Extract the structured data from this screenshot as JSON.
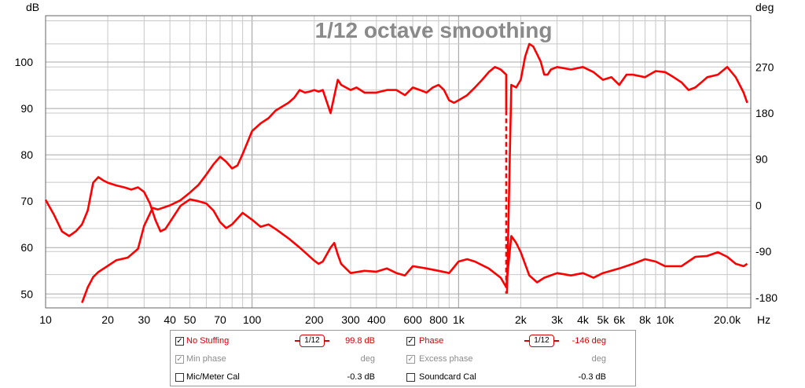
{
  "chart_data": {
    "type": "line",
    "title": "1/12 octave smoothing",
    "x_scale": "log",
    "xlim": [
      10,
      26000
    ],
    "y_left_label": "dB",
    "y_right_label": "deg",
    "x_unit_label": "Hz",
    "ylim_left": [
      47,
      110
    ],
    "ylim_right": [
      -200,
      370
    ],
    "grid": true,
    "x_ticks": [
      {
        "v": 10,
        "t": "10"
      },
      {
        "v": 20,
        "t": "20"
      },
      {
        "v": 30,
        "t": "30"
      },
      {
        "v": 40,
        "t": "40"
      },
      {
        "v": 50,
        "t": "50"
      },
      {
        "v": 70,
        "t": "70"
      },
      {
        "v": 100,
        "t": "100"
      },
      {
        "v": 200,
        "t": "200"
      },
      {
        "v": 300,
        "t": "300"
      },
      {
        "v": 400,
        "t": "400"
      },
      {
        "v": 600,
        "t": "600"
      },
      {
        "v": 800,
        "t": "800"
      },
      {
        "v": 1000,
        "t": "1k"
      },
      {
        "v": 2000,
        "t": "2k"
      },
      {
        "v": 3000,
        "t": "3k"
      },
      {
        "v": 4000,
        "t": "4k"
      },
      {
        "v": 5000,
        "t": "5k"
      },
      {
        "v": 6000,
        "t": "6k"
      },
      {
        "v": 8000,
        "t": "8k"
      },
      {
        "v": 10000,
        "t": "10k"
      },
      {
        "v": 20000,
        "t": "20.0k"
      }
    ],
    "y_ticks_left": [
      50,
      60,
      70,
      80,
      90,
      100
    ],
    "y_ticks_right": [
      -180,
      -90,
      0,
      90,
      180,
      270
    ],
    "series": [
      {
        "name": "No Stuffing",
        "axis": "left",
        "color": "#ff0000",
        "points": [
          [
            10,
            70.3
          ],
          [
            11,
            67
          ],
          [
            12,
            63.5
          ],
          [
            13,
            62.5
          ],
          [
            14,
            63.5
          ],
          [
            15,
            65
          ],
          [
            16,
            68
          ],
          [
            17,
            74
          ],
          [
            18,
            75.2
          ],
          [
            19,
            74.5
          ],
          [
            20,
            74
          ],
          [
            22,
            73.4
          ],
          [
            24,
            73
          ],
          [
            26,
            72.5
          ],
          [
            28,
            73
          ],
          [
            30,
            72
          ],
          [
            32,
            69.5
          ],
          [
            34,
            66
          ],
          [
            36,
            63.5
          ],
          [
            38,
            64
          ],
          [
            40,
            65.5
          ],
          [
            45,
            69
          ],
          [
            50,
            70.4
          ],
          [
            55,
            70
          ],
          [
            60,
            69.5
          ],
          [
            65,
            68
          ],
          [
            70,
            65.5
          ],
          [
            75,
            64.2
          ],
          [
            80,
            65
          ],
          [
            90,
            67.5
          ],
          [
            100,
            66
          ],
          [
            110,
            64.5
          ],
          [
            120,
            65
          ],
          [
            130,
            64
          ],
          [
            150,
            62
          ],
          [
            170,
            60
          ],
          [
            200,
            57.2
          ],
          [
            210,
            56.5
          ],
          [
            220,
            57
          ],
          [
            240,
            60
          ],
          [
            250,
            61
          ],
          [
            260,
            58.5
          ],
          [
            270,
            56.5
          ],
          [
            300,
            54.5
          ],
          [
            350,
            55
          ],
          [
            400,
            54.8
          ],
          [
            450,
            55.5
          ],
          [
            500,
            54.5
          ],
          [
            550,
            54
          ],
          [
            600,
            56
          ],
          [
            700,
            55.5
          ],
          [
            800,
            55
          ],
          [
            900,
            54.5
          ],
          [
            1000,
            57
          ],
          [
            1100,
            57.5
          ],
          [
            1200,
            57
          ],
          [
            1400,
            55.5
          ],
          [
            1600,
            53.5
          ],
          [
            1700,
            51.5
          ],
          [
            1800,
            62.5
          ],
          [
            1900,
            61
          ],
          [
            2000,
            59
          ],
          [
            2200,
            54
          ],
          [
            2400,
            52.5
          ],
          [
            2600,
            53.5
          ],
          [
            3000,
            54.5
          ],
          [
            3500,
            54
          ],
          [
            4000,
            54.5
          ],
          [
            4500,
            53.5
          ],
          [
            5000,
            54.5
          ],
          [
            6000,
            55.5
          ],
          [
            7000,
            56.5
          ],
          [
            8000,
            57.5
          ],
          [
            9000,
            57
          ],
          [
            10000,
            56
          ],
          [
            12000,
            56
          ],
          [
            14000,
            58
          ],
          [
            16000,
            58.2
          ],
          [
            18000,
            59
          ],
          [
            20000,
            58
          ],
          [
            22000,
            56.5
          ],
          [
            24000,
            56
          ],
          [
            25000,
            56.5
          ]
        ]
      },
      {
        "name": "Phase",
        "axis": "right",
        "color": "#ff0000",
        "points": [
          [
            15,
            -190
          ],
          [
            16,
            -160
          ],
          [
            17,
            -140
          ],
          [
            18,
            -130
          ],
          [
            20,
            -118
          ],
          [
            22,
            -107
          ],
          [
            25,
            -102
          ],
          [
            28,
            -85
          ],
          [
            30,
            -40
          ],
          [
            33,
            -5
          ],
          [
            35,
            -8
          ],
          [
            40,
            0
          ],
          [
            45,
            10
          ],
          [
            50,
            25
          ],
          [
            55,
            40
          ],
          [
            60,
            60
          ],
          [
            65,
            80
          ],
          [
            70,
            95
          ],
          [
            75,
            85
          ],
          [
            80,
            72
          ],
          [
            85,
            78
          ],
          [
            90,
            100
          ],
          [
            100,
            145
          ],
          [
            110,
            160
          ],
          [
            120,
            170
          ],
          [
            130,
            185
          ],
          [
            150,
            200
          ],
          [
            160,
            210
          ],
          [
            170,
            225
          ],
          [
            180,
            220
          ],
          [
            190,
            222
          ],
          [
            200,
            225
          ],
          [
            210,
            222
          ],
          [
            220,
            225
          ],
          [
            240,
            180
          ],
          [
            260,
            245
          ],
          [
            270,
            235
          ],
          [
            300,
            225
          ],
          [
            320,
            230
          ],
          [
            350,
            220
          ],
          [
            400,
            220
          ],
          [
            450,
            225
          ],
          [
            500,
            225
          ],
          [
            550,
            215
          ],
          [
            600,
            230
          ],
          [
            650,
            225
          ],
          [
            700,
            220
          ],
          [
            750,
            230
          ],
          [
            800,
            235
          ],
          [
            850,
            225
          ],
          [
            900,
            205
          ],
          [
            950,
            200
          ],
          [
            1000,
            205
          ],
          [
            1100,
            215
          ],
          [
            1200,
            230
          ],
          [
            1300,
            245
          ],
          [
            1400,
            260
          ],
          [
            1500,
            270
          ],
          [
            1600,
            265
          ],
          [
            1700,
            255
          ],
          [
            1800,
            235
          ],
          [
            1900,
            230
          ],
          [
            2000,
            245
          ],
          [
            2100,
            290
          ],
          [
            2200,
            315
          ],
          [
            2300,
            310
          ],
          [
            2400,
            295
          ],
          [
            2500,
            280
          ],
          [
            2600,
            255
          ],
          [
            2700,
            255
          ],
          [
            2800,
            265
          ],
          [
            3000,
            270
          ],
          [
            3500,
            265
          ],
          [
            4000,
            270
          ],
          [
            4500,
            260
          ],
          [
            5000,
            245
          ],
          [
            5500,
            250
          ],
          [
            6000,
            235
          ],
          [
            6500,
            255
          ],
          [
            7000,
            255
          ],
          [
            8000,
            250
          ],
          [
            9000,
            262
          ],
          [
            10000,
            260
          ],
          [
            11000,
            250
          ],
          [
            12000,
            240
          ],
          [
            13000,
            225
          ],
          [
            14000,
            230
          ],
          [
            15000,
            240
          ],
          [
            16000,
            250
          ],
          [
            18000,
            255
          ],
          [
            20000,
            270
          ],
          [
            22000,
            250
          ],
          [
            24000,
            220
          ],
          [
            25000,
            200
          ]
        ]
      }
    ],
    "phase_wrap": {
      "freq": 1700,
      "from_deg": 185,
      "to_deg": -172
    }
  },
  "legend": {
    "rows": [
      {
        "left": {
          "label": "No Stuffing",
          "checked": true,
          "enabled": true,
          "smoothing": "1/12",
          "value": "99.8 dB"
        },
        "right": {
          "label": "Phase",
          "checked": true,
          "enabled": true,
          "smoothing": "1/12",
          "value": "-146 deg"
        }
      },
      {
        "left": {
          "label": "Min phase",
          "checked": true,
          "enabled": false,
          "value": "deg"
        },
        "right": {
          "label": "Excess phase",
          "checked": true,
          "enabled": false,
          "value": "deg"
        }
      },
      {
        "left": {
          "label": "Mic/Meter Cal",
          "checked": false,
          "enabled": true,
          "value": "-0.3 dB"
        },
        "right": {
          "label": "Soundcard Cal",
          "checked": false,
          "enabled": true,
          "value": "-0.3 dB"
        }
      }
    ]
  }
}
